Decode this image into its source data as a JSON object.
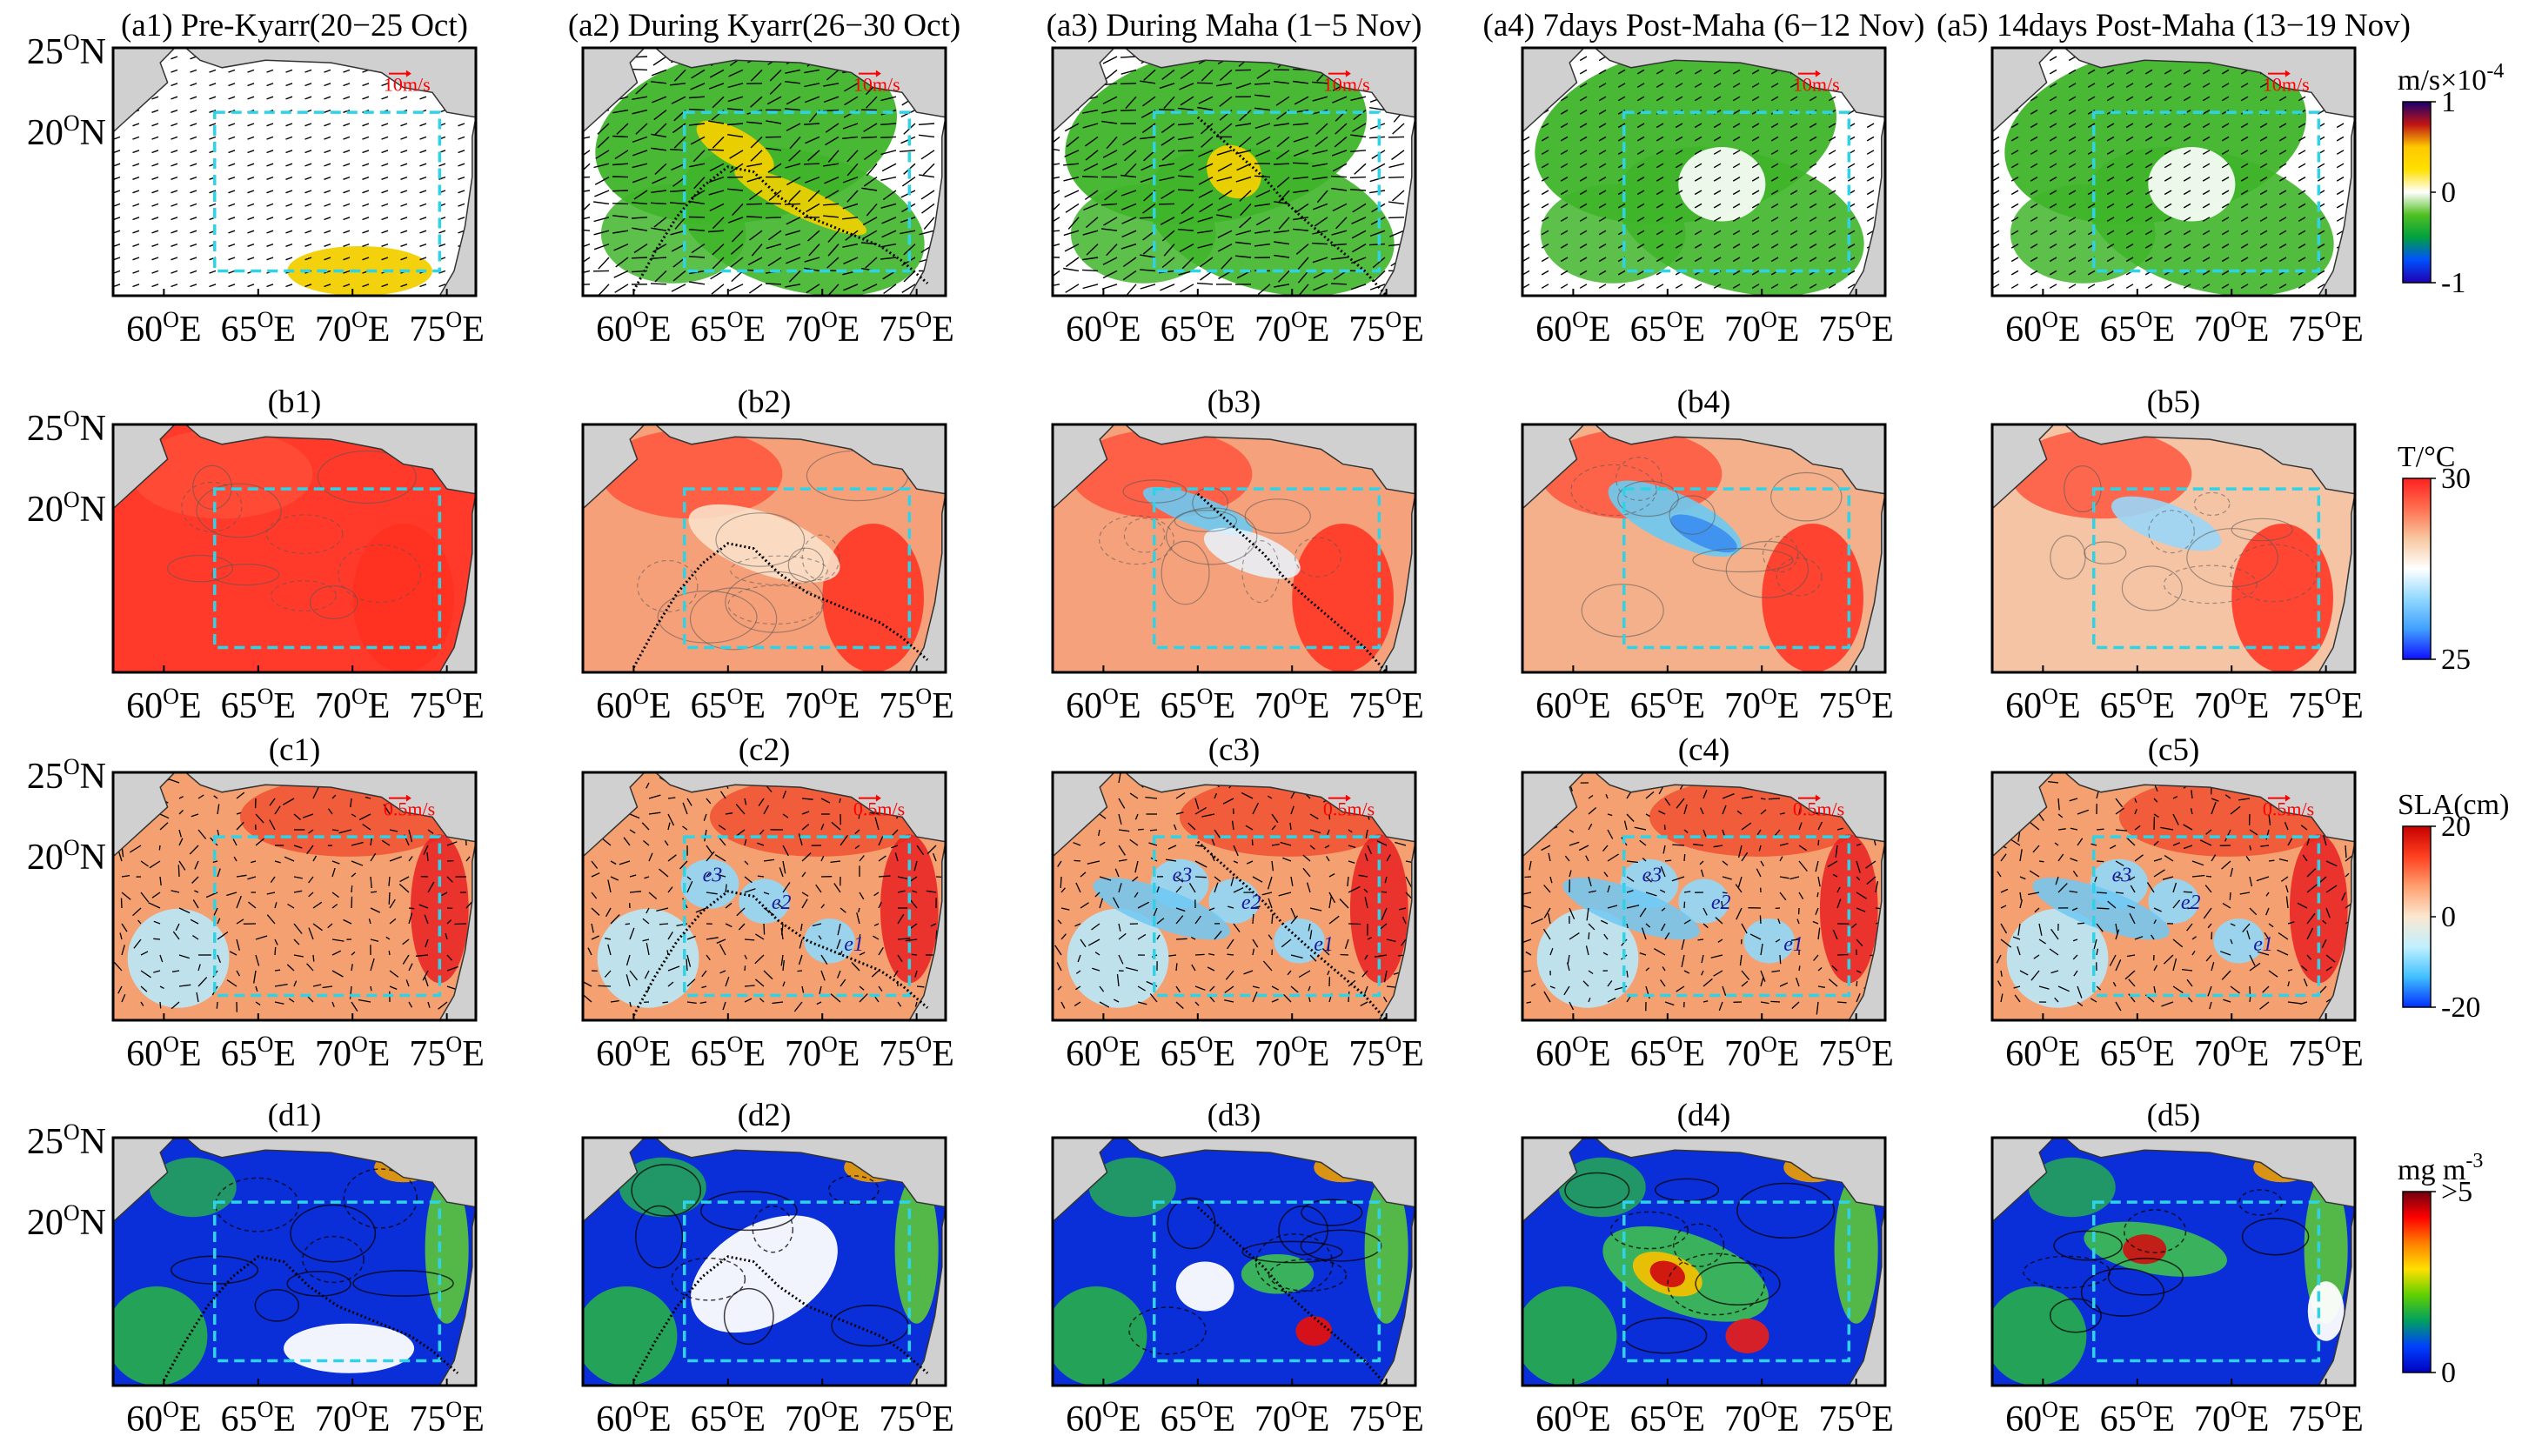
{
  "panels": [
    {
      "id": "a1",
      "title": "(a1) Pre-Kyarr(20−25 Oct)",
      "row": "a",
      "col": 0,
      "track": "none",
      "vector": "10m/s"
    },
    {
      "id": "a2",
      "title": "(a2) During Kyarr(26−30 Oct)",
      "row": "a",
      "col": 1,
      "track": "kyarr",
      "vector": "10m/s"
    },
    {
      "id": "a3",
      "title": "(a3) During Maha (1−5 Nov)",
      "row": "a",
      "col": 2,
      "track": "maha",
      "vector": "10m/s"
    },
    {
      "id": "a4",
      "title": "(a4) 7days Post-Maha (6−12 Nov)",
      "row": "a",
      "col": 3,
      "track": "none",
      "vector": "10m/s"
    },
    {
      "id": "a5",
      "title": "(a5) 14days Post-Maha (13−19 Nov)",
      "row": "a",
      "col": 4,
      "track": "none",
      "vector": "10m/s"
    },
    {
      "id": "b1",
      "title": "(b1)",
      "row": "b",
      "col": 0,
      "track": "none"
    },
    {
      "id": "b2",
      "title": "(b2)",
      "row": "b",
      "col": 1,
      "track": "kyarr"
    },
    {
      "id": "b3",
      "title": "(b3)",
      "row": "b",
      "col": 2,
      "track": "maha"
    },
    {
      "id": "b4",
      "title": "(b4)",
      "row": "b",
      "col": 3,
      "track": "none"
    },
    {
      "id": "b5",
      "title": "(b5)",
      "row": "b",
      "col": 4,
      "track": "none"
    },
    {
      "id": "c1",
      "title": "(c1)",
      "row": "c",
      "col": 0,
      "track": "none",
      "vector": "0.5m/s"
    },
    {
      "id": "c2",
      "title": "(c2)",
      "row": "c",
      "col": 1,
      "track": "kyarr",
      "vector": "0.5m/s",
      "eddies": [
        "e3",
        "e2",
        "e1"
      ]
    },
    {
      "id": "c3",
      "title": "(c3)",
      "row": "c",
      "col": 2,
      "track": "maha",
      "vector": "0.5m/s",
      "eddies": [
        "e3",
        "e2",
        "e1"
      ]
    },
    {
      "id": "c4",
      "title": "(c4)",
      "row": "c",
      "col": 3,
      "track": "none",
      "vector": "0.5m/s",
      "eddies": [
        "e3",
        "e2",
        "e1"
      ]
    },
    {
      "id": "c5",
      "title": "(c5)",
      "row": "c",
      "col": 4,
      "track": "none",
      "vector": "0.5m/s",
      "eddies": [
        "e3",
        "e2",
        "e1"
      ]
    },
    {
      "id": "d1",
      "title": "(d1)",
      "row": "d",
      "col": 0,
      "track": "kyarr"
    },
    {
      "id": "d2",
      "title": "(d2)",
      "row": "d",
      "col": 1,
      "track": "kyarr"
    },
    {
      "id": "d3",
      "title": "(d3)",
      "row": "d",
      "col": 2,
      "track": "maha"
    },
    {
      "id": "d4",
      "title": "(d4)",
      "row": "d",
      "col": 3,
      "track": "none"
    },
    {
      "id": "d5",
      "title": "(d5)",
      "row": "d",
      "col": 4,
      "track": "none"
    }
  ],
  "axes": {
    "lon_ticks": [
      "60",
      "65",
      "70",
      "75"
    ],
    "lon_suffix": "E",
    "lat_ticks": [
      "25",
      "20"
    ],
    "lat_suffix": "N",
    "degree": "O"
  },
  "colorbars": [
    {
      "row": "a",
      "label": "m/s×10",
      "label_exp": "-4",
      "ticks": [
        "1",
        "0",
        "-1"
      ],
      "colors": [
        "#1a0070",
        "#c01414",
        "#ffc800",
        "#ffe000",
        "#ffffff",
        "#50c020",
        "#00a040",
        "#0050ff",
        "#2000b0"
      ]
    },
    {
      "row": "b",
      "label": "T/°C",
      "ticks": [
        "30",
        "25"
      ],
      "colors": [
        "#ff2020",
        "#ff7050",
        "#f8c8a0",
        "#ffffff",
        "#90d8ff",
        "#40a0ff",
        "#1010ff"
      ]
    },
    {
      "row": "c",
      "label": "SLA(cm)",
      "ticks": [
        "20",
        "0",
        "-20"
      ],
      "colors": [
        "#c80000",
        "#ff4020",
        "#ffa070",
        "#fbe8d0",
        "#c0f0ff",
        "#40c0ff",
        "#0030ff"
      ]
    },
    {
      "row": "d",
      "label": "mg m",
      "label_exp": "-3",
      "ticks": [
        ">5",
        "0"
      ],
      "colors": [
        "#700010",
        "#ff0000",
        "#ff8000",
        "#ffe000",
        "#60d000",
        "#00a060",
        "#0040ff",
        "#0000c0"
      ]
    }
  ],
  "colors": {
    "land": "#d0d0d0",
    "box": "#2fd3e8",
    "track": "#000000",
    "vector_label": "#ff0000"
  }
}
